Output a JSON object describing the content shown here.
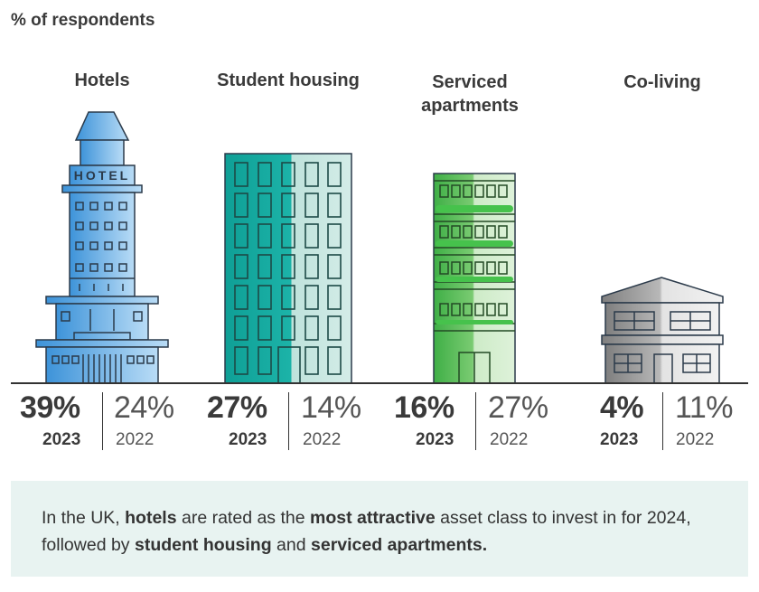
{
  "chart_data": {
    "type": "bar",
    "ylabel": "% of respondents",
    "categories": [
      "Hotels",
      "Student housing",
      "Serviced apartments",
      "Co-living"
    ],
    "series": [
      {
        "name": "2023",
        "values": [
          39,
          27,
          16,
          4
        ]
      },
      {
        "name": "2022",
        "values": [
          24,
          14,
          27,
          11
        ]
      }
    ],
    "value_labels_2023": [
      "39%",
      "27%",
      "16%",
      "4%"
    ],
    "value_labels_2022": [
      "24%",
      "14%",
      "27%",
      "11%"
    ],
    "year_labels": {
      "current": "2023",
      "previous": "2022"
    },
    "ylim": [
      0,
      39
    ],
    "grid": false
  },
  "icons": [
    "hotel-building-icon",
    "student-housing-building-icon",
    "serviced-apartments-building-icon",
    "co-living-house-icon"
  ],
  "hotel_sign": "HOTEL",
  "colors": {
    "hotels": "#5aa9e6",
    "student_housing": "#12a79d",
    "serviced_apartments": "#4cbb4c",
    "co_living": "#8a8a8a",
    "note_background": "#e8f3f1"
  },
  "note": {
    "p1": "In the UK, ",
    "b1": "hotels",
    "p2": " are rated as the ",
    "b2": "most attractive",
    "p3": " asset class to invest in for 2024, followed by ",
    "b3": "student housing",
    "p4": " and ",
    "b4": "serviced apartments."
  }
}
